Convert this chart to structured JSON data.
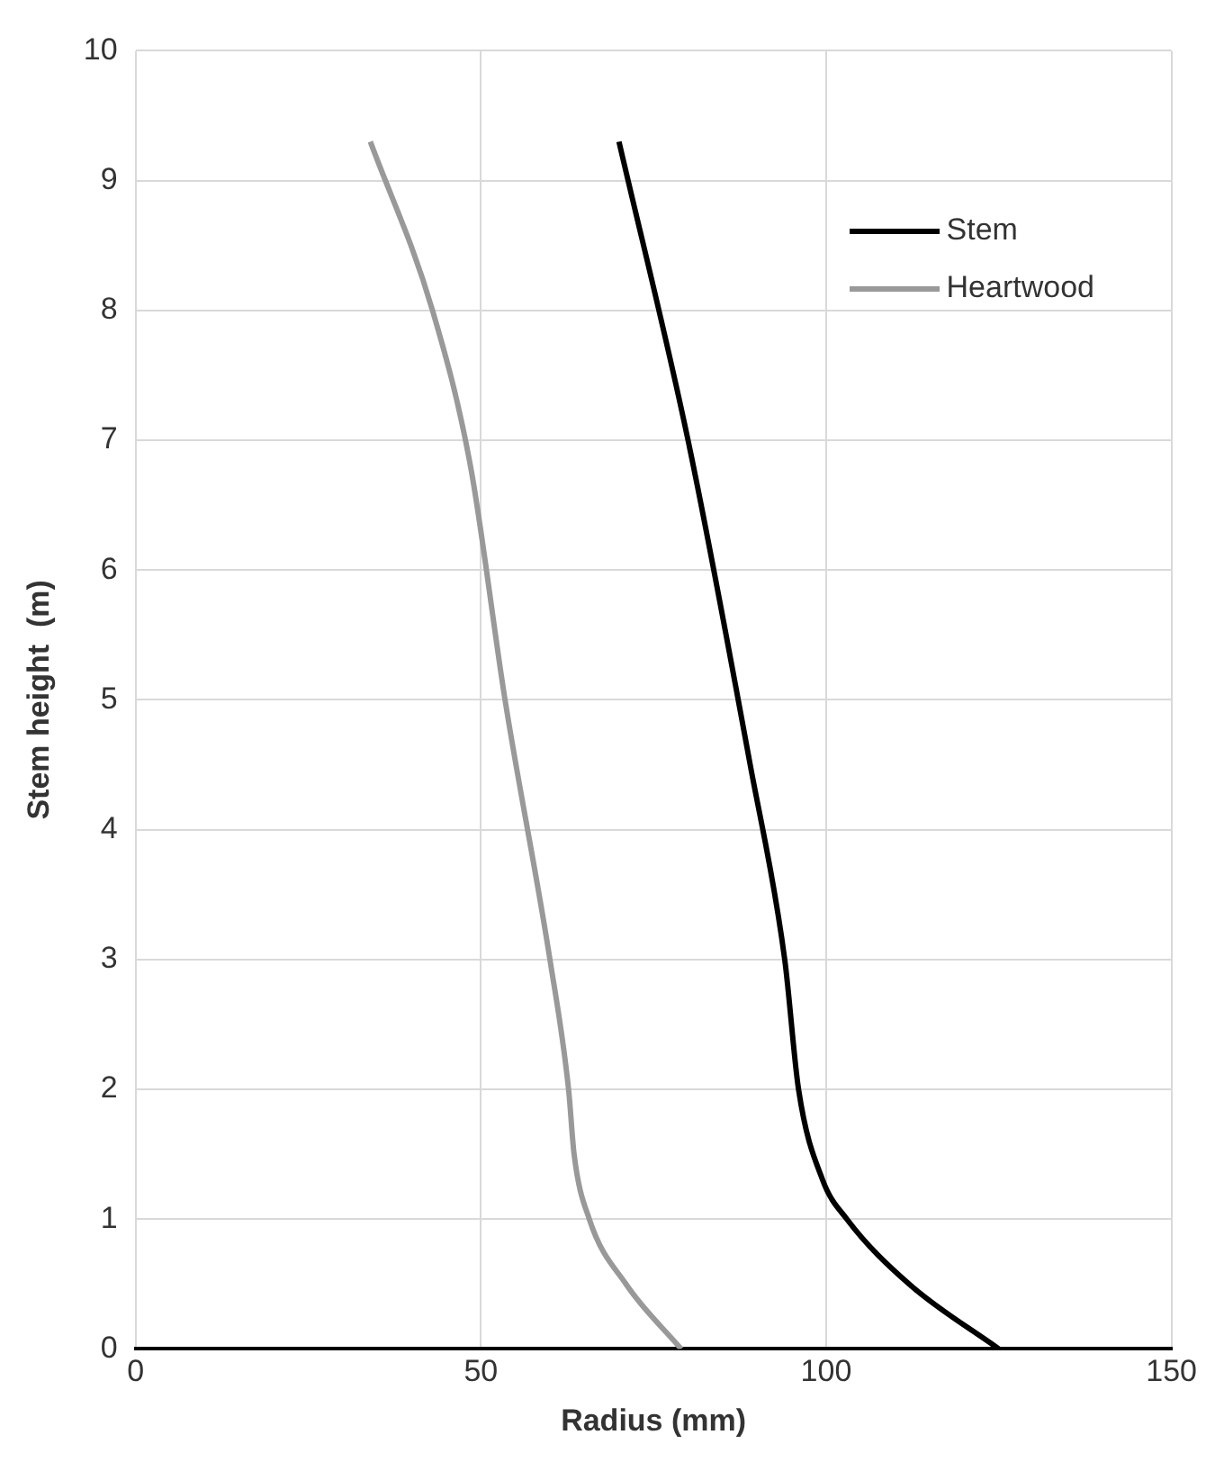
{
  "chart_data": {
    "type": "line",
    "xlabel": "Radius (mm)",
    "ylabel": "Stem height  (m)",
    "xlim": [
      0,
      150
    ],
    "xticks": [
      0,
      50,
      100,
      150
    ],
    "ylim": [
      0,
      10
    ],
    "yticks": [
      0,
      1,
      2,
      3,
      4,
      5,
      6,
      7,
      8,
      9,
      10
    ],
    "grid": true,
    "legend": "top right",
    "marker": "none",
    "line_style": "solid",
    "series": [
      {
        "name": "Stem",
        "color": "#000000",
        "x": [
          70,
          80,
          89,
          94,
          96,
          99.5,
          103,
          112,
          125
        ],
        "values": [
          9.3,
          7,
          4.5,
          3,
          2,
          1.3,
          1,
          0.5,
          0
        ]
      },
      {
        "name": "Heartwood",
        "color": "#999999",
        "x": [
          34,
          43,
          48.5,
          53.5,
          60,
          62.7,
          63.5,
          65.7,
          71,
          79
        ],
        "values": [
          9.3,
          8,
          6.8,
          5,
          3,
          2,
          1.5,
          1,
          0.5,
          0
        ]
      }
    ]
  }
}
